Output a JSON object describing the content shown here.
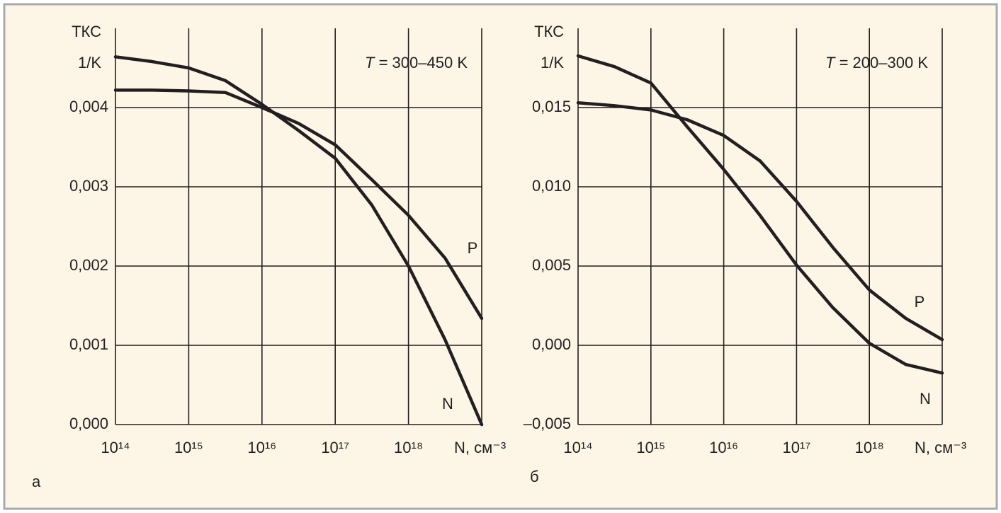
{
  "chart_data": [
    {
      "type": "line",
      "panel_label": "а",
      "ylabel": "ТКС",
      "yunit": "1/K",
      "xlabel": "N, см⁻³",
      "annotation": {
        "symbol": "T",
        "text": " = 300–450 K"
      },
      "xscale": "log",
      "xlim": [
        100000000000000.0,
        1e+19
      ],
      "xticks": [
        {
          "value": 100000000000000.0,
          "label": "10¹⁴"
        },
        {
          "value": 1000000000000000.0,
          "label": "10¹⁵"
        },
        {
          "value": 1e+16,
          "label": "10¹⁶"
        },
        {
          "value": 1e+17,
          "label": "10¹⁷"
        },
        {
          "value": 1e+18,
          "label": "10¹⁸"
        }
      ],
      "ylim": [
        0,
        0.005
      ],
      "yticks": [
        {
          "value": 0,
          "label": "0,000"
        },
        {
          "value": 0.001,
          "label": "0,001"
        },
        {
          "value": 0.002,
          "label": "0,002"
        },
        {
          "value": 0.003,
          "label": "0,003"
        },
        {
          "value": 0.004,
          "label": "0,004"
        }
      ],
      "grid": true,
      "x": [
        100000000000000.0,
        316000000000000.0,
        1000000000000000.0,
        3160000000000000.0,
        1e+16,
        3.16e+16,
        1e+17,
        3.16e+17,
        1e+18,
        3.16e+18,
        1e+19
      ],
      "series": [
        {
          "name": "N",
          "color": "#231f20",
          "values": [
            0.00464,
            0.00458,
            0.0045,
            0.00434,
            0.00404,
            0.00371,
            0.00336,
            0.00277,
            0.002,
            0.00107,
            0
          ]
        },
        {
          "name": "P",
          "color": "#231f20",
          "values": [
            0.00422,
            0.00422,
            0.00421,
            0.00419,
            0.004,
            0.0038,
            0.00353,
            0.00309,
            0.00264,
            0.0021,
            0.00134
          ]
        }
      ]
    },
    {
      "type": "line",
      "panel_label": "б",
      "ylabel": "ТКС",
      "yunit": "1/K",
      "xlabel": "N, см⁻³",
      "annotation": {
        "symbol": "T",
        "text": " = 200–300 K"
      },
      "xscale": "log",
      "xlim": [
        100000000000000.0,
        1e+19
      ],
      "xticks": [
        {
          "value": 100000000000000.0,
          "label": "10¹⁴"
        },
        {
          "value": 1000000000000000.0,
          "label": "10¹⁵"
        },
        {
          "value": 1e+16,
          "label": "10¹⁶"
        },
        {
          "value": 1e+17,
          "label": "10¹⁷"
        },
        {
          "value": 1e+18,
          "label": "10¹⁸"
        }
      ],
      "ylim": [
        -0.005,
        0.02
      ],
      "yticks": [
        {
          "value": -0.005,
          "label": "–0,005"
        },
        {
          "value": 0,
          "label": "0,000"
        },
        {
          "value": 0.005,
          "label": "0,005"
        },
        {
          "value": 0.01,
          "label": "0,010"
        },
        {
          "value": 0.015,
          "label": "0,015"
        }
      ],
      "grid": true,
      "x": [
        100000000000000.0,
        316000000000000.0,
        1000000000000000.0,
        3160000000000000.0,
        1e+16,
        3.16e+16,
        1e+17,
        3.16e+17,
        1e+18,
        3.16e+18,
        1e+19
      ],
      "series": [
        {
          "name": "N",
          "color": "#231f20",
          "values": [
            0.01826,
            0.01758,
            0.01655,
            0.01378,
            0.0111,
            0.00819,
            0.00506,
            0.00237,
            0.00013,
            -0.00121,
            -0.00175
          ]
        },
        {
          "name": "P",
          "color": "#231f20",
          "values": [
            0.0153,
            0.01512,
            0.01485,
            0.01423,
            0.01324,
            0.01163,
            0.00908,
            0.00617,
            0.00349,
            0.0017,
            0.00036
          ]
        }
      ]
    }
  ]
}
